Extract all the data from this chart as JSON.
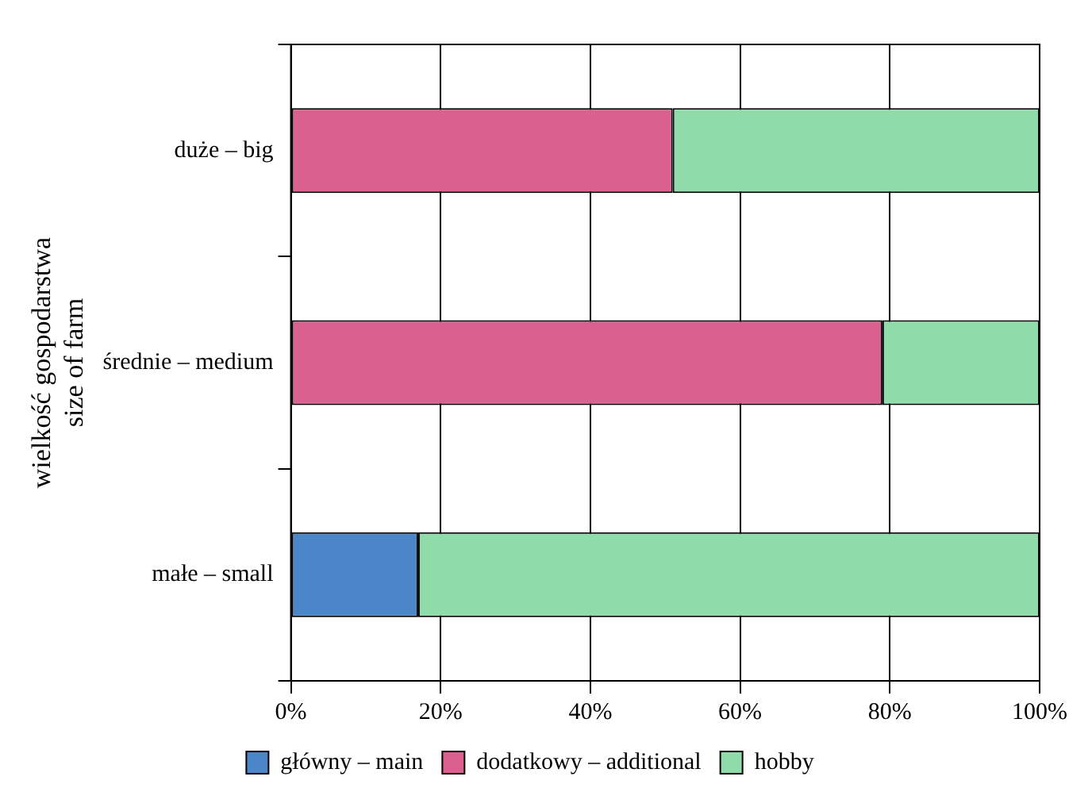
{
  "chart_data": {
    "type": "bar",
    "orientation": "horizontal",
    "stacked": true,
    "ylabel": "wielkość gospodarstwa\nsize of farm",
    "categories": [
      "duże – big",
      "średnie – medium",
      "małe – small"
    ],
    "series": [
      {
        "name": "główny – main",
        "color": "#4a86c8",
        "values": [
          0,
          0,
          17
        ]
      },
      {
        "name": "dodatkowy – additional",
        "color": "#d9608f",
        "values": [
          51,
          79,
          0
        ]
      },
      {
        "name": "hobby",
        "color": "#8fdcaa",
        "values": [
          49,
          21,
          83
        ]
      }
    ],
    "xlim": [
      0,
      100
    ],
    "xticks": [
      {
        "value": 0,
        "label": "0%"
      },
      {
        "value": 20,
        "label": "20%"
      },
      {
        "value": 40,
        "label": "40%"
      },
      {
        "value": 60,
        "label": "60%"
      },
      {
        "value": 80,
        "label": "80%"
      },
      {
        "value": 100,
        "label": "100%"
      }
    ],
    "grid": "x",
    "legend": "bottom"
  }
}
